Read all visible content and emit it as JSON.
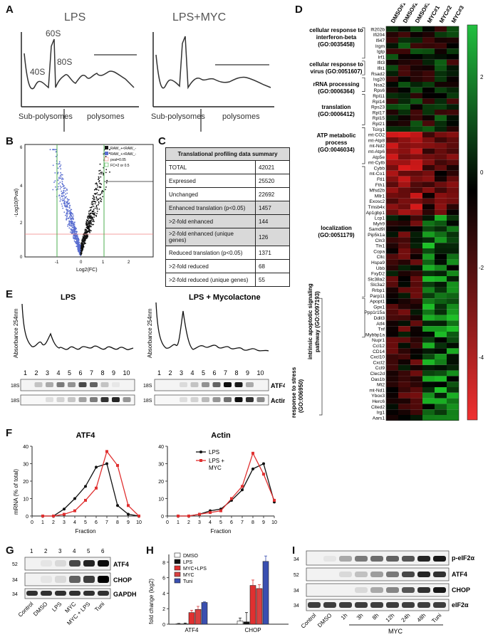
{
  "panels": {
    "A": "A",
    "B": "B",
    "C": "C",
    "D": "D",
    "E": "E",
    "F": "F",
    "G": "G",
    "H": "H",
    "I": "I"
  },
  "panelA": {
    "left_title": "LPS",
    "right_title": "LPS+MYC",
    "peak_40s": "40S",
    "peak_60s": "60S",
    "peak_80s": "80S",
    "left_sub": "Sub-polysomes",
    "left_poly": "polysomes",
    "right_sub": "Sub-polysomes",
    "right_poly": "polysomes"
  },
  "panelB": {
    "ylabel": "-Log10(Pval)",
    "xlabel": "Log2(FC)",
    "legend": [
      "RAW_+<RAW_-",
      "RAW_+>RAW_-",
      "pval=0.05",
      "FC=2 or 0.5"
    ],
    "yticks": [
      "0",
      "2",
      "4",
      "6"
    ],
    "xticks": [
      "-1",
      "0",
      "1",
      "2"
    ]
  },
  "panelC": {
    "title": "Translational profiling data summary",
    "rows": [
      {
        "label": "TOTAL",
        "value": "42021",
        "shade": false
      },
      {
        "label": "Expressed",
        "value": "25520",
        "shade": false
      },
      {
        "label": "Unchanged",
        "value": "22692",
        "shade": false
      },
      {
        "label": "Enhanced translation (p<0.05)",
        "value": "1457",
        "shade": true
      },
      {
        "label": ">2-fold enhanced",
        "value": "144",
        "shade": true
      },
      {
        "label": ">2-fold enhanced (unique genes)",
        "value": "126",
        "shade": true
      },
      {
        "label": "Reduced translation (p<0.05)",
        "value": "1371",
        "shade": false
      },
      {
        "label": ">2-fold reduced",
        "value": "68",
        "shade": false
      },
      {
        "label": ">2-fold reduced (unique genes)",
        "value": "55",
        "shade": false
      }
    ]
  },
  "panelD": {
    "columns": [
      "DMSO#1",
      "DMSO#2",
      "DMSO#3",
      "MYC#1",
      "MYC#2",
      "MYC#3"
    ],
    "genes": [
      "Ifi202b",
      "Ifi204",
      "Ifi47",
      "Irgm",
      "Igtp",
      "Irf1",
      "Ifit3",
      "Ifit1",
      "Rsad2",
      "Isg20",
      "Nsa2",
      "Rps6",
      "Rpl11",
      "Rpl14",
      "Rps23",
      "Rpl17",
      "Rpl15",
      "Rpl21",
      "Tcirg1",
      "mt-CO2",
      "mt-Atp8",
      "mt-Nd2",
      "mt-Atp6",
      "Atp5e",
      "mt-Cytb",
      "Cybb",
      "mt-Co1",
      "Ftl1",
      "Fth1",
      "Mfsd2b",
      "Mllr1",
      "Exosc2",
      "Tmsb4x",
      "Ap1gbp1",
      "Lcp1",
      "Myh9",
      "Samd9l",
      "Pip5k1a",
      "Cln3",
      "Tln1",
      "Copa",
      "Cltc",
      "Hspa9",
      "Ubb",
      "FxyD2",
      "Slc38a2",
      "Slc3a2",
      "Rrbp1",
      "Parp11",
      "Apopt1",
      "Gpx1",
      "Ppp1r15a",
      "Ddit3",
      "Atf4",
      "Tnf",
      "Mybbp1a",
      "Nupr1",
      "Ccl12",
      "CD14",
      "Cxcl10",
      "Cxcl2",
      "Ccl9",
      "Clec2d",
      "Oas1b",
      "Mt2",
      "mt-Nd1",
      "Ybox3",
      "Herc6",
      "Cited2",
      "Irg1",
      "Aars1"
    ],
    "go_labels": [
      {
        "lines": [
          "cellular response to",
          "interferon-beta",
          "(GO:0035458)"
        ]
      },
      {
        "lines": [
          "cellular response to",
          "virus (GO:0051607)"
        ]
      },
      {
        "lines": [
          "rRNA processing",
          "(GO:0006364)"
        ]
      },
      {
        "lines": [
          "translation",
          "(GO:0006412)"
        ]
      },
      {
        "lines": [
          "ATP metabolic",
          "process",
          "(GO:0046034)"
        ]
      },
      {
        "lines": [
          "localization",
          "(GO:0051179)"
        ]
      }
    ],
    "rot_label_1": [
      "intrinsic apoptotic signaling",
      "pathway (GO:0097193)"
    ],
    "rot_label_2": [
      "response to stress",
      "(GO:006950)"
    ],
    "colorbar_ticks": [
      "2",
      "0",
      "-2",
      "-4"
    ]
  },
  "panelE": {
    "left_title": "LPS",
    "right_title": "LPS + Mycolactone",
    "ylabel_left": "Absorbance 254nm",
    "ylabel_right": "Absorbance 254nm",
    "fractions": [
      "1",
      "2",
      "3",
      "4",
      "5",
      "6",
      "7",
      "8",
      "9",
      "10"
    ],
    "lane_18s": "18S",
    "atf4": "ATF4",
    "actin": "Actin"
  },
  "panelF": {
    "chart_data": [
      {
        "type": "line",
        "title": "ATF4",
        "xlabel": "Fraction",
        "ylabel": "mRNA (% of total)",
        "x": [
          1,
          2,
          3,
          4,
          5,
          6,
          7,
          8,
          9,
          10
        ],
        "ylim": [
          0,
          40
        ],
        "xlim": [
          0,
          10
        ],
        "series": [
          {
            "name": "LPS",
            "color": "#111111",
            "values": [
              0,
              0,
              4,
              10,
              17,
              28,
              30,
              6,
              1,
              0
            ]
          },
          {
            "name": "LPS + MYC",
            "color": "#e03030",
            "values": [
              0,
              0,
              1,
              3,
              9,
              16,
              37,
              29,
              6,
              0
            ]
          }
        ]
      },
      {
        "type": "line",
        "title": "Actin",
        "xlabel": "Fraction",
        "ylabel": "",
        "x": [
          1,
          2,
          3,
          4,
          5,
          6,
          7,
          8,
          9,
          10
        ],
        "ylim": [
          0,
          40
        ],
        "xlim": [
          0,
          10
        ],
        "series": [
          {
            "name": "LPS",
            "color": "#111111",
            "values": [
              0,
              0,
              1,
              3,
              4,
              9,
              15,
              27,
              30,
              8
            ]
          },
          {
            "name": "LPS + MYC",
            "color": "#e03030",
            "values": [
              0,
              0,
              1,
              2,
              3,
              10,
              17,
              36,
              24,
              9
            ]
          }
        ]
      }
    ],
    "yticks": [
      "0",
      "10",
      "20",
      "30",
      "40"
    ],
    "xticks": [
      "0",
      "1",
      "2",
      "3",
      "4",
      "5",
      "6",
      "7",
      "8",
      "9",
      "10"
    ],
    "legend_lps": "LPS",
    "legend_myc_1": "LPS +",
    "legend_myc_2": "MYC"
  },
  "panelG": {
    "lanes": [
      "1",
      "2",
      "3",
      "4",
      "5",
      "6"
    ],
    "mw": [
      "52",
      "34",
      "34"
    ],
    "bands": [
      "ATF4",
      "CHOP",
      "GAPDH"
    ],
    "labels": [
      "Control",
      "DMSO",
      "LPS",
      "MYC",
      "MYC + LPS",
      "Tuni"
    ]
  },
  "panelH": {
    "chart_data": {
      "type": "bar",
      "categories": [
        "ATF4",
        "CHOP"
      ],
      "ylabel": "fold change (log2)",
      "ylim": [
        0,
        9
      ],
      "series": [
        {
          "name": "DMSO",
          "color": "#ffffff",
          "values": [
            0.05,
            0.4
          ]
        },
        {
          "name": "LPS",
          "color": "#111111",
          "values": [
            0.05,
            0.3
          ]
        },
        {
          "name": "MYC+LPS",
          "color": "#e03030",
          "values": [
            1.5,
            5.0
          ]
        },
        {
          "name": "MYC",
          "color": "#d94040",
          "values": [
            1.9,
            4.6
          ]
        },
        {
          "name": "Tuni",
          "color": "#3a4fb0",
          "values": [
            2.8,
            8.1
          ]
        }
      ],
      "errors": [
        [
          0.05,
          0.4
        ],
        [
          0.1,
          1.2
        ],
        [
          0.3,
          0.7
        ],
        [
          0.4,
          0.5
        ],
        [
          0.1,
          0.7
        ]
      ]
    },
    "yticks": [
      "0",
      "2",
      "4",
      "6",
      "8"
    ]
  },
  "panelI": {
    "mw": [
      "34",
      "52",
      "34",
      "34"
    ],
    "bands": [
      "p-eIF2α",
      "ATF4",
      "CHOP",
      "eIF2α"
    ],
    "labels": [
      "Control",
      "DMSO",
      "1h",
      "3h",
      "8h",
      "12h",
      "24h",
      "48h",
      "Tuni"
    ],
    "myc": "MYC"
  }
}
